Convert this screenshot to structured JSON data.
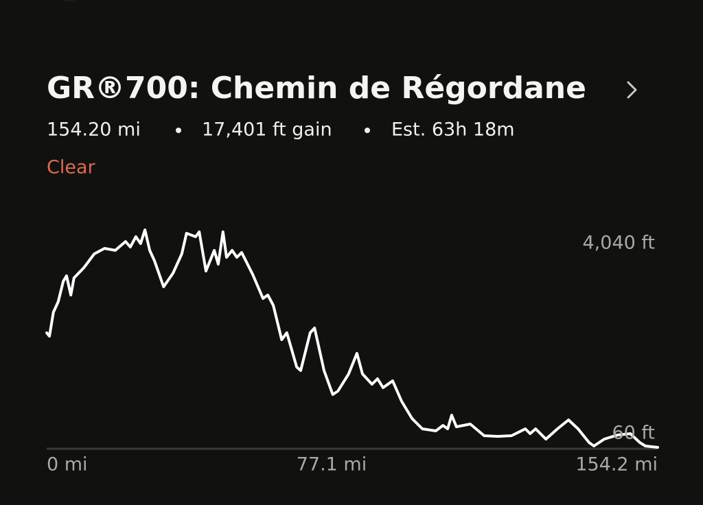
{
  "header": {
    "title": "GR®700: Chemin de Régordane",
    "distance": "154.20 mi",
    "gain": "17,401 ft gain",
    "estimate": "Est. 63h 18m",
    "action": "Clear"
  },
  "chart_data": {
    "type": "line",
    "color": "#ffffff",
    "x": [
      0,
      0.7,
      1.7,
      2.9,
      4.2,
      5.0,
      6.1,
      6.9,
      9.4,
      12.0,
      14.6,
      17.3,
      19.9,
      21.1,
      22.5,
      23.7,
      24.8,
      26.0,
      27.2,
      29.5,
      31.9,
      34.1,
      35.3,
      37.6,
      38.5,
      40.2,
      42.3,
      43.3,
      44.5,
      45.4,
      46.8,
      48.0,
      49.2,
      52.0,
      54.6,
      55.8,
      57.2,
      59.3,
      60.6,
      63.1,
      64.1,
      66.5,
      67.6,
      70.0,
      72.2,
      73.5,
      76.2,
      78.3,
      79.7,
      82.1,
      83.5,
      84.9,
      87.3,
      89.6,
      92.2,
      94.8,
      98.2,
      100.0,
      101.2,
      102.2,
      103.4,
      106.9,
      110.4,
      113.8,
      117.3,
      120.8,
      122.0,
      123.4,
      126.0,
      128.9,
      131.7,
      134.1,
      136.9,
      138.1,
      140.7,
      144.1,
      147.3,
      149.7,
      151.1,
      154.2
    ],
    "values": [
      2157,
      2094,
      2534,
      2722,
      3099,
      3199,
      2847,
      3161,
      3350,
      3601,
      3701,
      3664,
      3827,
      3726,
      3915,
      3789,
      4040,
      3664,
      3475,
      2998,
      3249,
      3601,
      3977,
      3915,
      4003,
      3287,
      3664,
      3412,
      4003,
      3538,
      3664,
      3538,
      3626,
      3224,
      2785,
      2847,
      2659,
      2031,
      2157,
      1529,
      1466,
      2157,
      2245,
      1466,
      1027,
      1090,
      1403,
      1780,
      1403,
      1215,
      1316,
      1152,
      1278,
      901,
      587,
      399,
      361,
      462,
      399,
      650,
      437,
      487,
      273,
      261,
      273,
      399,
      311,
      399,
      211,
      399,
      562,
      399,
      148,
      85,
      211,
      286,
      311,
      148,
      85,
      60
    ],
    "xlim": [
      0,
      154.2
    ],
    "xticks": [
      {
        "value": 0,
        "label": "0 mi"
      },
      {
        "value": 77.1,
        "label": "77.1 mi"
      },
      {
        "value": 154.2,
        "label": "154.2 mi"
      }
    ],
    "ylim": [
      60,
      4040
    ],
    "yticks": [
      {
        "value": 4040,
        "label": "4,040 ft"
      },
      {
        "value": 60,
        "label": "60 ft"
      }
    ]
  }
}
